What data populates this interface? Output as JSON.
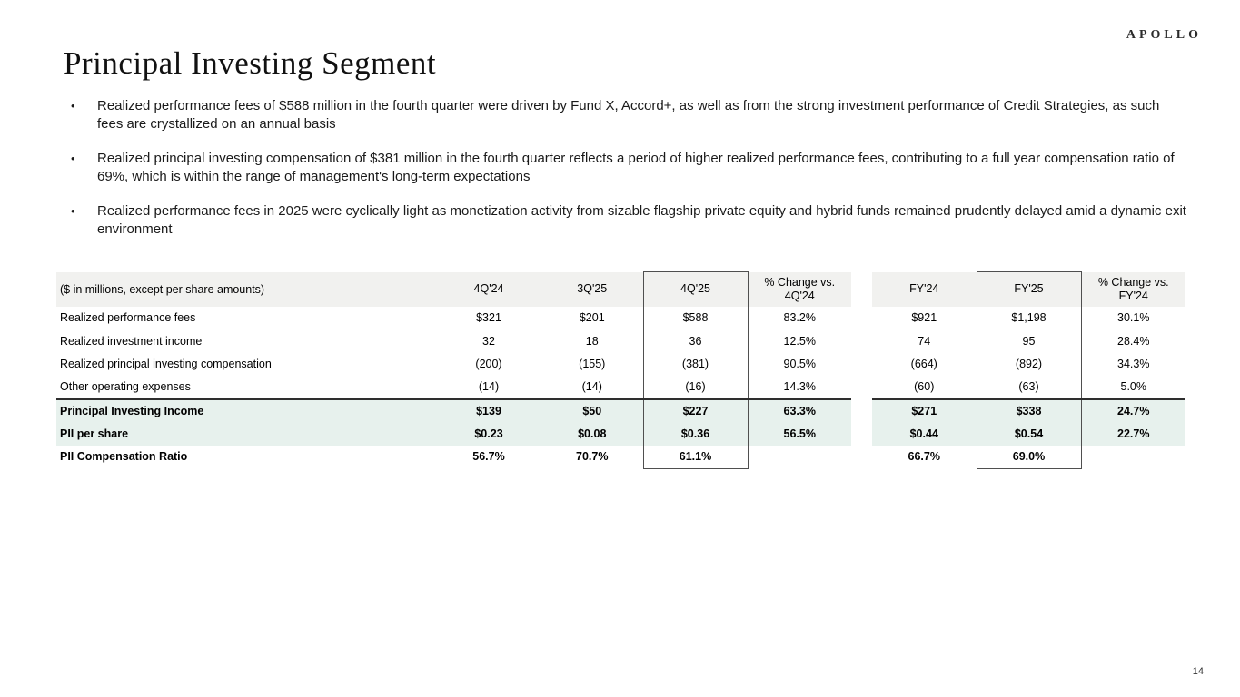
{
  "brand": {
    "logo_text": "APOLLO"
  },
  "page": {
    "title": "Principal Investing Segment",
    "page_number": "14"
  },
  "bullets": [
    {
      "marker": "•",
      "text": "Realized performance fees of $588 million in the fourth quarter were driven by Fund X, Accord+, as well as from the strong investment performance of Credit Strategies, as such fees are crystallized on an annual basis"
    },
    {
      "marker": "•",
      "text": "Realized principal investing compensation of $381 million in the fourth quarter reflects a period of higher realized performance fees, contributing to a full year compensation ratio of 69%, which is within the range of management's long-term expectations"
    },
    {
      "marker": "•",
      "text": "Realized performance fees in 2025 were cyclically light as monetization activity from sizable flagship private equity and hybrid funds remained prudently delayed amid a dynamic exit environment"
    }
  ],
  "table": {
    "note": "($ in millions, except per share amounts)",
    "columns": [
      "4Q'24",
      "3Q'25",
      "4Q'25",
      "% Change vs.\n4Q'24",
      "FY'24",
      "FY'25",
      "% Change vs.\nFY'24"
    ],
    "boxed_columns": [
      "4Q'25",
      "FY'25"
    ],
    "rows": [
      {
        "label": "Realized performance fees",
        "values": [
          "$321",
          "$201",
          "$588",
          "83.2%",
          "$921",
          "$1,198",
          "30.1%"
        ],
        "style": "normal"
      },
      {
        "label": "Realized investment income",
        "values": [
          "32",
          "18",
          "36",
          "12.5%",
          "74",
          "95",
          "28.4%"
        ],
        "style": "normal"
      },
      {
        "label": "Realized principal investing compensation",
        "values": [
          "(200)",
          "(155)",
          "(381)",
          "90.5%",
          "(664)",
          "(892)",
          "34.3%"
        ],
        "style": "normal"
      },
      {
        "label": "Other operating expenses",
        "values": [
          "(14)",
          "(14)",
          "(16)",
          "14.3%",
          "(60)",
          "(63)",
          "5.0%"
        ],
        "style": "normal"
      },
      {
        "label": "Principal Investing Income",
        "values": [
          "$139",
          "$50",
          "$227",
          "63.3%",
          "$271",
          "$338",
          "24.7%"
        ],
        "style": "highlight"
      },
      {
        "label": "PII per share",
        "values": [
          "$0.23",
          "$0.08",
          "$0.36",
          "56.5%",
          "$0.44",
          "$0.54",
          "22.7%"
        ],
        "style": "highlight"
      },
      {
        "label": "PII Compensation Ratio",
        "values": [
          "56.7%",
          "70.7%",
          "61.1%",
          "",
          "66.7%",
          "69.0%",
          ""
        ],
        "style": "total"
      }
    ]
  },
  "colors": {
    "highlight_row": "#e7f1ed",
    "header_bg": "#f1f1ef",
    "box_border": "#4f4f4f",
    "rule": "#2e2e2e"
  }
}
